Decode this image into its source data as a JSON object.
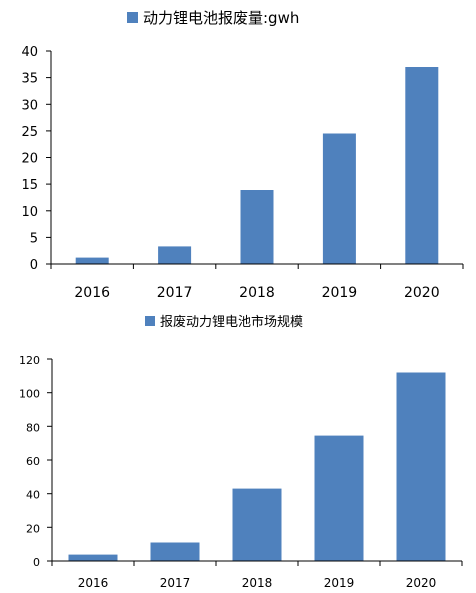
{
  "colors": {
    "bar": "#4f81bd",
    "axis": "#000000"
  },
  "chart_data": [
    {
      "type": "bar",
      "categories": [
        "2016",
        "2017",
        "2018",
        "2019",
        "2020"
      ],
      "series": [
        {
          "name": "动力锂电池报废量:gwh",
          "values": [
            1.2,
            3.3,
            13.9,
            24.5,
            37.0
          ]
        }
      ],
      "title": "",
      "xlabel": "",
      "ylabel": "",
      "ylim": [
        0,
        40
      ],
      "yticks": [
        "0",
        "5",
        "10",
        "15",
        "20",
        "25",
        "30",
        "35",
        "40"
      ],
      "grid": false,
      "legend_position": "top"
    },
    {
      "type": "bar",
      "categories": [
        "2016",
        "2017",
        "2018",
        "2019",
        "2020"
      ],
      "series": [
        {
          "name": "报废动力锂电池市场规模",
          "values": [
            3.8,
            11,
            43,
            74.5,
            112
          ]
        }
      ],
      "title": "",
      "xlabel": "",
      "ylabel": "",
      "ylim": [
        0,
        120
      ],
      "yticks": [
        "0",
        "20",
        "40",
        "60",
        "80",
        "100",
        "120"
      ],
      "grid": false,
      "legend_position": "top"
    }
  ]
}
